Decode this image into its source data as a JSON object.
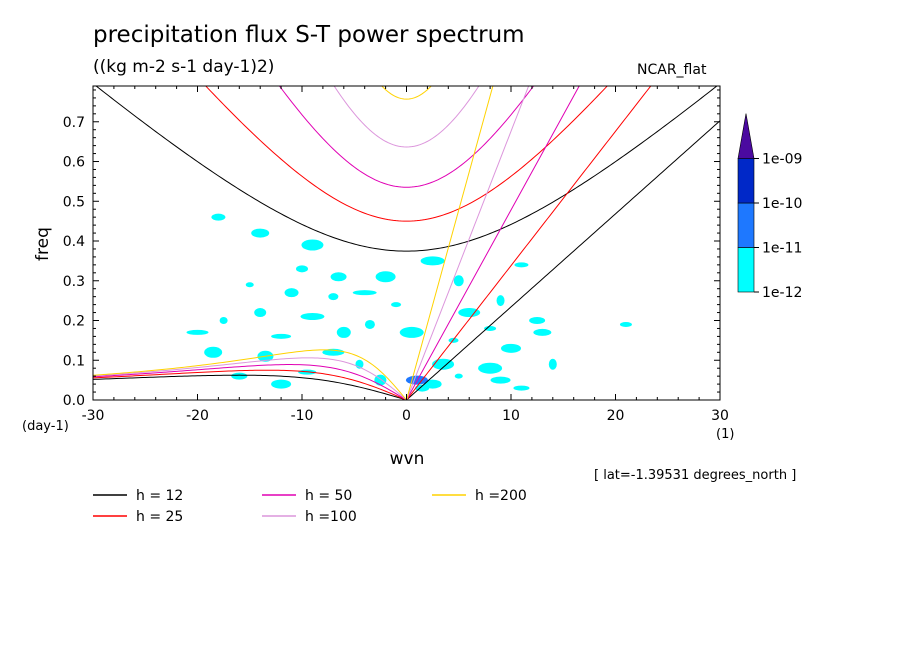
{
  "title": "precipitation flux S-T power spectrum",
  "units": "((kg m-2 s-1 day-1)2)",
  "source_label": "NCAR_flat",
  "lat_info": "[ lat=-1.39531 degrees_north ]",
  "chart_data": {
    "type": "heatmap",
    "xlabel": "wvn",
    "ylabel": "freq",
    "x_unit": "(1)",
    "y_unit": "(day-1)",
    "xlim": [
      -30,
      30
    ],
    "ylim": [
      0,
      0.79
    ],
    "xticks": [
      -30,
      -20,
      -10,
      0,
      10,
      20,
      30
    ],
    "xtick_labels": [
      "-30",
      "-20",
      "-10",
      "0",
      "10",
      "20",
      "30"
    ],
    "yticks": [
      0.0,
      0.1,
      0.2,
      0.3,
      0.4,
      0.5,
      0.6,
      0.7
    ],
    "ytick_labels": [
      "0.0",
      "0.1",
      "0.2",
      "0.3",
      "0.4",
      "0.5",
      "0.6",
      "0.7"
    ],
    "colorbar": {
      "levels": [
        "1e-12",
        "1e-11",
        "1e-10",
        "1e-09"
      ],
      "colors": [
        "#00ffff",
        "#1e78ff",
        "#0028c8",
        "#4b0aa0"
      ]
    },
    "dispersion_curves": [
      {
        "name": "h = 12",
        "h": 12,
        "color": "#000000"
      },
      {
        "name": "h = 25",
        "h": 25,
        "color": "#ff0000"
      },
      {
        "name": "h = 50",
        "h": 50,
        "color": "#e000b4"
      },
      {
        "name": "h =100",
        "h": 100,
        "color": "#dc96dc"
      },
      {
        "name": "h =200",
        "h": 200,
        "color": "#ffd200"
      }
    ],
    "contour_regions": [
      {
        "x": 5.0,
        "y": 0.06,
        "level": "1e-12"
      },
      {
        "x": 3.5,
        "y": 0.09,
        "level": "1e-12"
      },
      {
        "x": 2.5,
        "y": 0.04,
        "level": "1e-12"
      },
      {
        "x": 1.5,
        "y": 0.03,
        "level": "1e-12"
      },
      {
        "x": 4.5,
        "y": 0.15,
        "level": "1e-12"
      },
      {
        "x": 8.0,
        "y": 0.08,
        "level": "1e-12"
      },
      {
        "x": 10.0,
        "y": 0.13,
        "level": "1e-12"
      },
      {
        "x": 12.5,
        "y": 0.2,
        "level": "1e-12"
      },
      {
        "x": 8.0,
        "y": 0.18,
        "level": "1e-12"
      },
      {
        "x": 9.0,
        "y": 0.25,
        "level": "1e-12"
      },
      {
        "x": 6.0,
        "y": 0.22,
        "level": "1e-12"
      },
      {
        "x": 13.0,
        "y": 0.17,
        "level": "1e-12"
      },
      {
        "x": 11.0,
        "y": 0.34,
        "level": "1e-12"
      },
      {
        "x": 5.0,
        "y": 0.3,
        "level": "1e-12"
      },
      {
        "x": 2.5,
        "y": 0.35,
        "level": "1e-12"
      },
      {
        "x": 9.0,
        "y": 0.05,
        "level": "1e-12"
      },
      {
        "x": 11.0,
        "y": 0.03,
        "level": "1e-12"
      },
      {
        "x": -2.5,
        "y": 0.05,
        "level": "1e-12"
      },
      {
        "x": -4.5,
        "y": 0.09,
        "level": "1e-12"
      },
      {
        "x": -7.0,
        "y": 0.12,
        "level": "1e-12"
      },
      {
        "x": -9.5,
        "y": 0.07,
        "level": "1e-12"
      },
      {
        "x": -6.0,
        "y": 0.17,
        "level": "1e-12"
      },
      {
        "x": -3.5,
        "y": 0.19,
        "level": "1e-12"
      },
      {
        "x": -9.0,
        "y": 0.21,
        "level": "1e-12"
      },
      {
        "x": -12.0,
        "y": 0.16,
        "level": "1e-12"
      },
      {
        "x": -13.5,
        "y": 0.11,
        "level": "1e-12"
      },
      {
        "x": -14.0,
        "y": 0.22,
        "level": "1e-12"
      },
      {
        "x": -17.5,
        "y": 0.2,
        "level": "1e-12"
      },
      {
        "x": -20.0,
        "y": 0.17,
        "level": "1e-12"
      },
      {
        "x": -18.5,
        "y": 0.12,
        "level": "1e-12"
      },
      {
        "x": -11.0,
        "y": 0.27,
        "level": "1e-12"
      },
      {
        "x": -7.0,
        "y": 0.26,
        "level": "1e-12"
      },
      {
        "x": -4.0,
        "y": 0.27,
        "level": "1e-12"
      },
      {
        "x": -2.0,
        "y": 0.31,
        "level": "1e-12"
      },
      {
        "x": -6.5,
        "y": 0.31,
        "level": "1e-12"
      },
      {
        "x": -10.0,
        "y": 0.33,
        "level": "1e-12"
      },
      {
        "x": -15.0,
        "y": 0.29,
        "level": "1e-12"
      },
      {
        "x": -9.0,
        "y": 0.39,
        "level": "1e-12"
      },
      {
        "x": -14.0,
        "y": 0.42,
        "level": "1e-12"
      },
      {
        "x": -18.0,
        "y": 0.46,
        "level": "1e-12"
      },
      {
        "x": -1.0,
        "y": 0.24,
        "level": "1e-12"
      },
      {
        "x": 0.5,
        "y": 0.17,
        "level": "1e-12"
      },
      {
        "x": -12.0,
        "y": 0.04,
        "level": "1e-12"
      },
      {
        "x": -16.0,
        "y": 0.06,
        "level": "1e-12"
      },
      {
        "x": 21.0,
        "y": 0.19,
        "level": "1e-12"
      },
      {
        "x": 14.0,
        "y": 0.09,
        "level": "1e-12"
      },
      {
        "x": 1.0,
        "y": 0.05,
        "level": "1e-11"
      }
    ]
  },
  "legend": {
    "items": [
      {
        "label": "h = 12",
        "color": "#000000"
      },
      {
        "label": "h = 25",
        "color": "#ff0000"
      },
      {
        "label": "h = 50",
        "color": "#e000b4"
      },
      {
        "label": "h =100",
        "color": "#dc96dc"
      },
      {
        "label": "h =200",
        "color": "#ffd200"
      }
    ]
  }
}
